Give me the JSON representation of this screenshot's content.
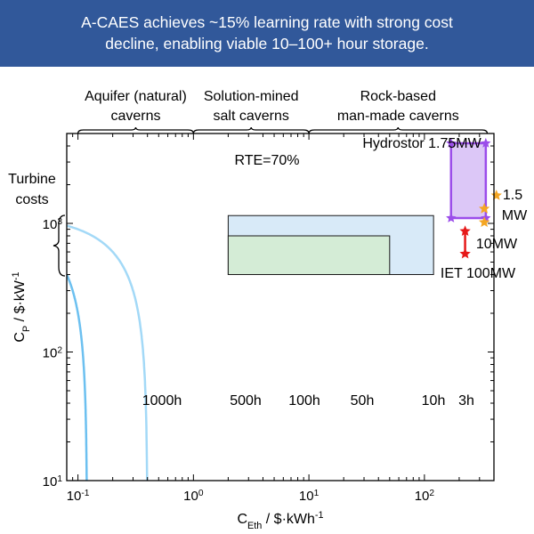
{
  "banner": {
    "line1": "A-CAES achieves ~15% learning rate with strong cost",
    "line2": "decline, enabling viable 10–100+ hour storage."
  },
  "chart_data": {
    "type": "line",
    "x_scale": "log",
    "y_scale": "log",
    "xlim": [
      0.08,
      400
    ],
    "ylim": [
      10,
      5000
    ],
    "xticks": [
      {
        "value": 0.1,
        "label": "10",
        "exp": "-1"
      },
      {
        "value": 1,
        "label": "10",
        "exp": "0"
      },
      {
        "value": 10,
        "label": "10",
        "exp": "1"
      },
      {
        "value": 100,
        "label": "10",
        "exp": "2"
      }
    ],
    "yticks": [
      {
        "value": 10,
        "label": "10",
        "exp": "1"
      },
      {
        "value": 100,
        "label": "10",
        "exp": "2"
      },
      {
        "value": 1000,
        "label": "10",
        "exp": "3"
      }
    ],
    "xlabel": {
      "main": "C",
      "sub": "Eth",
      "unit": " / $·kWh",
      "exp": "-1"
    },
    "ylabel": {
      "main": "C",
      "sub": "P",
      "unit": " / $·kW",
      "exp": "-1"
    },
    "asymptote_cp": 1200,
    "series": [
      {
        "label": "1000h",
        "hours": 1000,
        "color": "#0f3f6e"
      },
      {
        "label": "500h",
        "hours": 500,
        "color": "#165fa0"
      },
      {
        "label": "100h",
        "hours": 100,
        "color": "#1f80cc"
      },
      {
        "label": "50h",
        "hours": 50,
        "color": "#3ea3e6"
      },
      {
        "label": "10h",
        "hours": 10,
        "color": "#6cc0f0"
      },
      {
        "label": "3h",
        "hours": 3,
        "color": "#a3d9f7"
      }
    ],
    "regions": [
      {
        "name": "blue-region",
        "x": [
          2,
          120
        ],
        "y": [
          400,
          1150
        ],
        "fill": "#d8eaf8"
      },
      {
        "name": "green-region",
        "x": [
          2,
          50
        ],
        "y": [
          400,
          800
        ],
        "fill": "#d4ecd6"
      }
    ],
    "annotations": {
      "rte": "RTE=70%",
      "turbine_line1": "Turbine",
      "turbine_line2": "costs",
      "hydrostor": "Hydrostor 1.75MW",
      "mw15_line1": "1.5",
      "mw15_line2": "MW",
      "mw10": "10MW",
      "iet": "IET 100MW"
    },
    "cavern_types": [
      {
        "line1": "Aquifer (natural)",
        "line2": "caverns",
        "x": [
          0.1,
          1
        ]
      },
      {
        "line1": "Solution-mined",
        "line2": "salt caverns",
        "x": [
          1,
          10
        ]
      },
      {
        "line1": "Rock-based",
        "line2": "man-made caverns",
        "x": [
          10,
          350
        ]
      }
    ],
    "hydrostor_box": {
      "x": [
        170,
        340
      ],
      "y": [
        1100,
        4200
      ],
      "color": "#9b4dea",
      "fill": "#dcc7f7"
    },
    "orange_points": [
      {
        "x": 330,
        "y": 1300
      },
      {
        "x": 330,
        "y": 1020
      },
      {
        "x": 420,
        "y": 1650
      }
    ],
    "iet_points": [
      {
        "x": 225,
        "y": 870
      },
      {
        "x": 225,
        "y": 580
      }
    ]
  }
}
